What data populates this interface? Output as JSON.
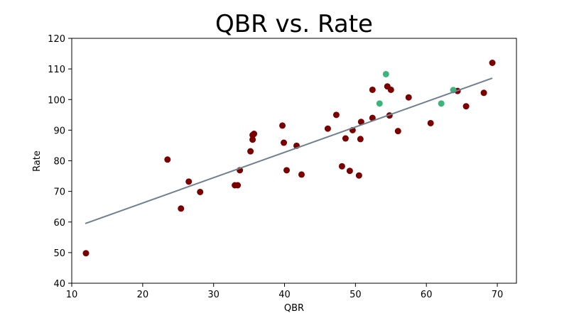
{
  "chart_data": {
    "type": "scatter",
    "title": "QBR vs. Rate",
    "xlabel": "QBR",
    "ylabel": "Rate",
    "xlim": [
      10,
      72.7
    ],
    "ylim": [
      40,
      120
    ],
    "xticks": [
      "10",
      "20",
      "30",
      "40",
      "50",
      "60",
      "70"
    ],
    "yticks": [
      "40",
      "50",
      "60",
      "70",
      "80",
      "90",
      "100",
      "110",
      "120"
    ],
    "grid": false,
    "series": [
      {
        "color": "#7b0000",
        "points": [
          [
            12.0,
            49.8
          ],
          [
            23.5,
            80.4
          ],
          [
            25.4,
            64.4
          ],
          [
            26.5,
            73.2
          ],
          [
            28.1,
            69.8
          ],
          [
            33.0,
            72.0
          ],
          [
            33.4,
            72.0
          ],
          [
            33.7,
            76.9
          ],
          [
            35.2,
            83.1
          ],
          [
            35.5,
            86.9
          ],
          [
            35.5,
            88.4
          ],
          [
            35.7,
            88.8
          ],
          [
            39.7,
            91.5
          ],
          [
            39.9,
            85.9
          ],
          [
            40.3,
            76.9
          ],
          [
            41.7,
            84.9
          ],
          [
            42.4,
            75.5
          ],
          [
            46.1,
            90.5
          ],
          [
            47.3,
            95.0
          ],
          [
            48.1,
            78.2
          ],
          [
            48.6,
            87.3
          ],
          [
            49.2,
            76.7
          ],
          [
            49.6,
            90.0
          ],
          [
            50.5,
            75.2
          ],
          [
            50.7,
            87.1
          ],
          [
            50.8,
            92.7
          ],
          [
            52.4,
            94.0
          ],
          [
            52.4,
            103.2
          ],
          [
            54.5,
            104.3
          ],
          [
            54.8,
            94.8
          ],
          [
            55.0,
            103.2
          ],
          [
            56.0,
            89.7
          ],
          [
            57.5,
            100.7
          ],
          [
            60.6,
            92.3
          ],
          [
            64.4,
            102.8
          ],
          [
            65.6,
            97.8
          ],
          [
            68.1,
            102.2
          ],
          [
            69.3,
            112.0
          ]
        ]
      },
      {
        "color": "#3cb57c",
        "points": [
          [
            53.4,
            98.7
          ],
          [
            54.3,
            108.3
          ],
          [
            62.1,
            98.7
          ],
          [
            63.8,
            103.1
          ]
        ]
      }
    ],
    "trendline": {
      "color": "#708090",
      "x": [
        11.9,
        69.3
      ],
      "y": [
        59.5,
        107.0
      ]
    }
  }
}
